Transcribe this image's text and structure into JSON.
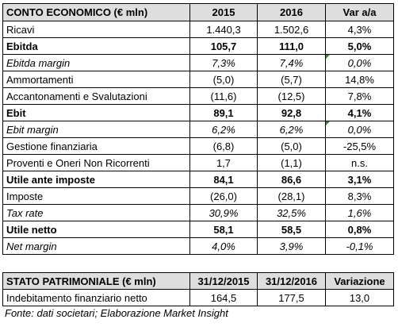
{
  "conto_economico": {
    "headers": [
      "CONTO ECONOMICO (€ mln)",
      "2015",
      "2016",
      "Var a/a"
    ],
    "rows": [
      {
        "label": "Ricavi",
        "v2015": "1.440,3",
        "v2016": "1.502,6",
        "var": "4,3%",
        "style": "normal"
      },
      {
        "label": "Ebitda",
        "v2015": "105,7",
        "v2016": "111,0",
        "var": "5,0%",
        "style": "bold"
      },
      {
        "label": "Ebitda margin",
        "v2015": "7,3%",
        "v2016": "7,4%",
        "var": "0,0%",
        "style": "italic",
        "mark": true
      },
      {
        "label": "Ammortamenti",
        "v2015": "(5,0)",
        "v2016": "(5,7)",
        "var": "14,8%",
        "style": "normal"
      },
      {
        "label": "Accantonamenti e Svalutazioni",
        "v2015": "(11,6)",
        "v2016": "(12,5)",
        "var": "7,8%",
        "style": "normal"
      },
      {
        "label": "Ebit",
        "v2015": "89,1",
        "v2016": "92,8",
        "var": "4,1%",
        "style": "bold"
      },
      {
        "label": "Ebit margin",
        "v2015": "6,2%",
        "v2016": "6,2%",
        "var": "0,0%",
        "style": "italic",
        "mark": true
      },
      {
        "label": "Gestione finanziaria",
        "v2015": "(6,8)",
        "v2016": "(5,0)",
        "var": "-25,5%",
        "style": "normal"
      },
      {
        "label": "Proventi e Oneri Non Ricorrenti",
        "v2015": "1,7",
        "v2016": "(1,1)",
        "var": "n.s.",
        "style": "normal"
      },
      {
        "label": "Utile ante imposte",
        "v2015": "84,1",
        "v2016": "86,6",
        "var": "3,1%",
        "style": "bold"
      },
      {
        "label": "Imposte",
        "v2015": "(26,0)",
        "v2016": "(28,1)",
        "var": "8,3%",
        "style": "normal"
      },
      {
        "label": "Tax rate",
        "v2015": "30,9%",
        "v2016": "32,5%",
        "var": "1,6%",
        "style": "italic"
      },
      {
        "label": "Utile netto",
        "v2015": "58,1",
        "v2016": "58,5",
        "var": "0,8%",
        "style": "bold"
      },
      {
        "label": "Net margin",
        "v2015": "4,0%",
        "v2016": "3,9%",
        "var": "-0,1%",
        "style": "italic"
      }
    ]
  },
  "stato_patrimoniale": {
    "headers": [
      "STATO PATRIMONIALE (€ mln)",
      "31/12/2015",
      "31/12/2016",
      "Variazione"
    ],
    "rows": [
      {
        "label": "Indebitamento finanziario netto",
        "v2015": "164,5",
        "v2016": "177,5",
        "var": "13,0"
      }
    ]
  },
  "source": "Fonte: dati societari; Elaborazione Market Insight",
  "colors": {
    "header_bg": "#dedede",
    "comment_marker": "#2e8b30"
  }
}
